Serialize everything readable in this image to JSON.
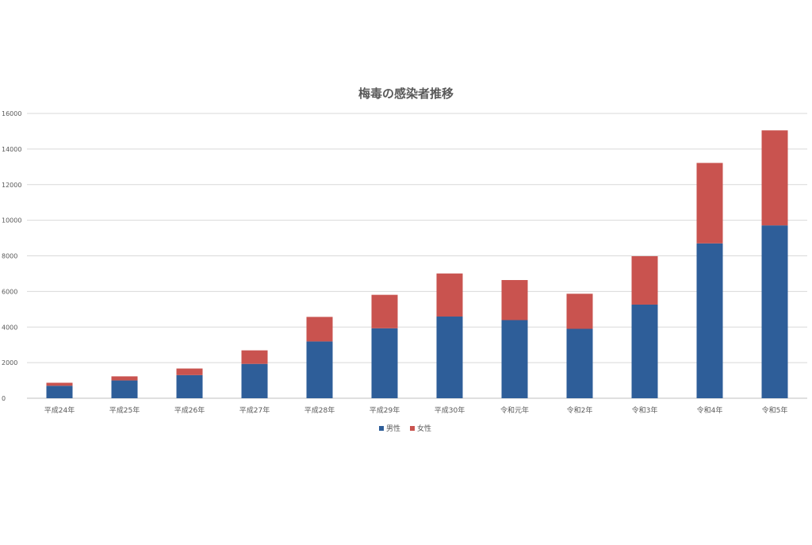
{
  "chart_data": {
    "type": "bar",
    "stacked": true,
    "title": "梅毒の感染者推移",
    "xlabel": "",
    "ylabel": "",
    "categories": [
      "平成24年",
      "平成25年",
      "平成26年",
      "平成27年",
      "平成28年",
      "平成29年",
      "平成30年",
      "令和元年",
      "令和2年",
      "令和3年",
      "令和4年",
      "令和5年"
    ],
    "series": [
      {
        "name": "男性",
        "color": "#2E5E99",
        "values": [
          700,
          1000,
          1300,
          1930,
          3190,
          3930,
          4590,
          4390,
          3900,
          5260,
          8700,
          9710
        ]
      },
      {
        "name": "女性",
        "color": "#C9534F",
        "values": [
          170,
          230,
          370,
          760,
          1380,
          1880,
          2420,
          2250,
          1970,
          2720,
          4520,
          5340
        ]
      }
    ],
    "ylim": [
      0,
      16000
    ],
    "yticks": [
      0,
      2000,
      4000,
      6000,
      8000,
      10000,
      12000,
      14000,
      16000
    ],
    "grid": true,
    "legend_position": "bottom"
  }
}
